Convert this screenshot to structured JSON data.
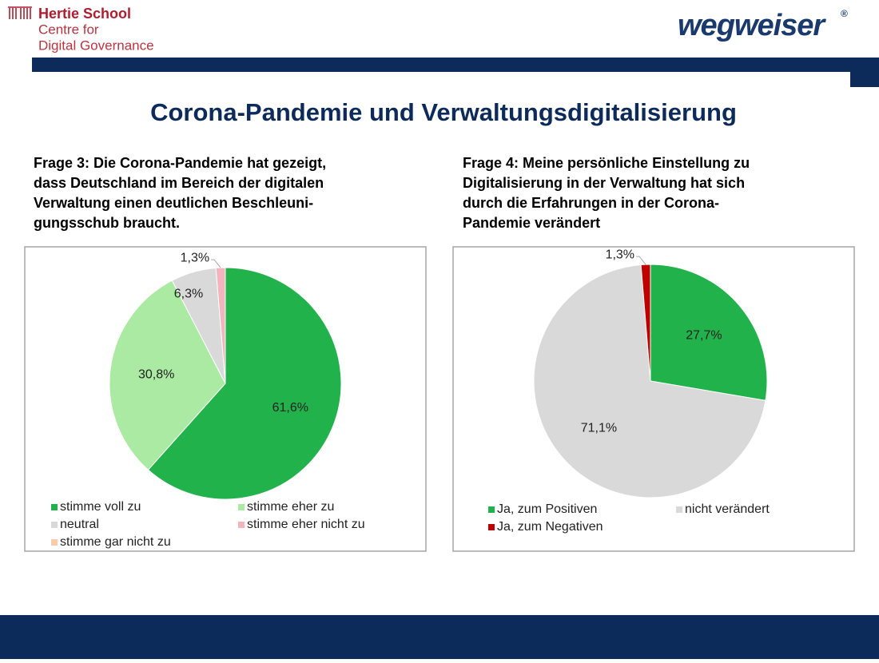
{
  "header": {
    "org": "Hertie School",
    "org_line2": "Centre for",
    "org_line3": "Digital Governance",
    "brand": "wegweiser",
    "brand_mark": "®"
  },
  "title": "Corona-Pandemie und Verwaltungsdigitalisierung",
  "chart_data": [
    {
      "type": "pie",
      "subtitle_lines": [
        "Frage 3: Die Corona-Pandemie hat gezeigt,",
        "dass Deutschland im Bereich der digitalen",
        "Verwaltung einen deutlichen Beschleuni-",
        "gungsschub braucht."
      ],
      "categories": [
        "stimme voll zu",
        "stimme eher zu",
        "neutral",
        "stimme eher nicht zu",
        "stimme gar nicht zu"
      ],
      "values": [
        61.6,
        30.8,
        6.3,
        1.3,
        0
      ],
      "value_labels": [
        "61,6%",
        "30,8%",
        "6,3%",
        "1,3%",
        null
      ],
      "colors": [
        "#22b24c",
        "#abeaa2",
        "#d9d9d9",
        "#f2b5bd",
        "#f8cbad"
      ],
      "legend_columns": 2
    },
    {
      "type": "pie",
      "subtitle_lines": [
        "Frage 4: Meine persönliche Einstellung zu",
        "Digitalisierung in der Verwaltung hat sich",
        "durch die Erfahrungen in der Corona-",
        "Pandemie verändert"
      ],
      "categories": [
        "Ja, zum Positiven",
        "nicht verändert",
        "Ja, zum Negativen"
      ],
      "values": [
        27.7,
        71.1,
        1.3
      ],
      "value_labels": [
        "27,7%",
        "71,1%",
        "1,3%"
      ],
      "colors": [
        "#22b24c",
        "#d9d9d9",
        "#c00000"
      ],
      "legend_columns": 2
    }
  ]
}
